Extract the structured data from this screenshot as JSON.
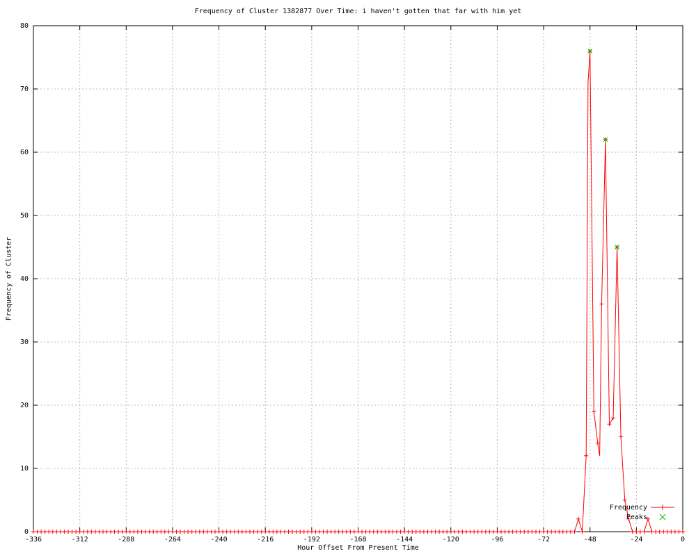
{
  "chart_data": {
    "type": "line",
    "title": "Frequency of Cluster 1382877 Over Time: i haven't gotten that far with him yet",
    "xlabel": "Hour Offset From Present Time",
    "ylabel": "Frequency of Cluster",
    "xlim": [
      -336,
      0
    ],
    "ylim": [
      0,
      80
    ],
    "xtick_step": 24,
    "ytick_step": 10,
    "xtick_labels": [
      "-336",
      "-312",
      "-288",
      "-264",
      "-240",
      "-216",
      "-192",
      "-168",
      "-144",
      "-120",
      "-96",
      "-72",
      "-48",
      "-24",
      "0"
    ],
    "ytick_labels": [
      "0",
      "10",
      "20",
      "30",
      "40",
      "50",
      "60",
      "70",
      "80"
    ],
    "grid": true,
    "grid_color": "#b8b8b8",
    "legend_position": "bottom-right-inside",
    "series": [
      {
        "name": "Frequency",
        "color": "#ff0000",
        "marker": "plus",
        "sampling": {
          "x_start": -336,
          "x_end": 0,
          "x_step": 2,
          "default_value": 0
        },
        "nonzero_points": {
          "-54": 2,
          "-50": 12,
          "-48": 76,
          "-46": 19,
          "-44": 14,
          "-42": 36,
          "-40": 62,
          "-38": 17,
          "-36": 18,
          "-34": 45,
          "-32": 15,
          "-30": 5,
          "-28": 2,
          "-18": 2
        },
        "unmarked_vertices": [
          [
            -49,
            71
          ],
          [
            -43,
            12
          ]
        ]
      },
      {
        "name": "Peaks",
        "color": "#00c000",
        "marker": "cross",
        "points": [
          [
            -48,
            76
          ],
          [
            -40,
            62
          ],
          [
            -34,
            45
          ]
        ]
      }
    ]
  }
}
